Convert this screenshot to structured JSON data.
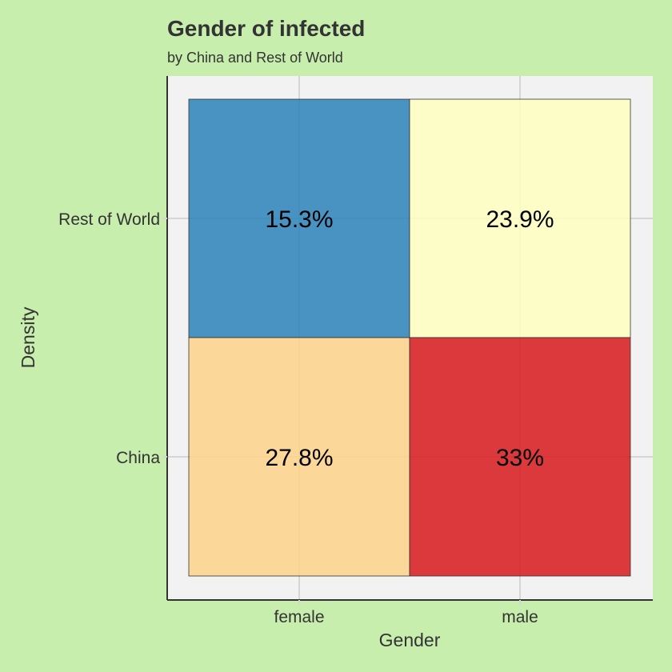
{
  "chart_data": {
    "type": "heatmap",
    "title": "Gender of infected",
    "subtitle": "by China and Rest of World",
    "xlabel": "Gender",
    "ylabel": "Density",
    "x_categories": [
      "female",
      "male"
    ],
    "y_categories": [
      "China",
      "Rest of World"
    ],
    "cells": [
      {
        "x": "female",
        "y": "Rest of World",
        "value": 15.3,
        "label": "15.3%",
        "color": "#2b83ba"
      },
      {
        "x": "male",
        "y": "Rest of World",
        "value": 23.9,
        "label": "23.9%",
        "color": "#ffffbf"
      },
      {
        "x": "female",
        "y": "China",
        "value": 27.8,
        "label": "27.8%",
        "color": "#fdd28a"
      },
      {
        "x": "male",
        "y": "China",
        "value": 33,
        "label": "33%",
        "color": "#d7191c"
      }
    ],
    "grid": true,
    "legend": "none"
  },
  "colors": {
    "background": "#c8eeae",
    "panel": "#f2f2f2",
    "gridline": "#d6d6d6",
    "axis": "#333333"
  }
}
